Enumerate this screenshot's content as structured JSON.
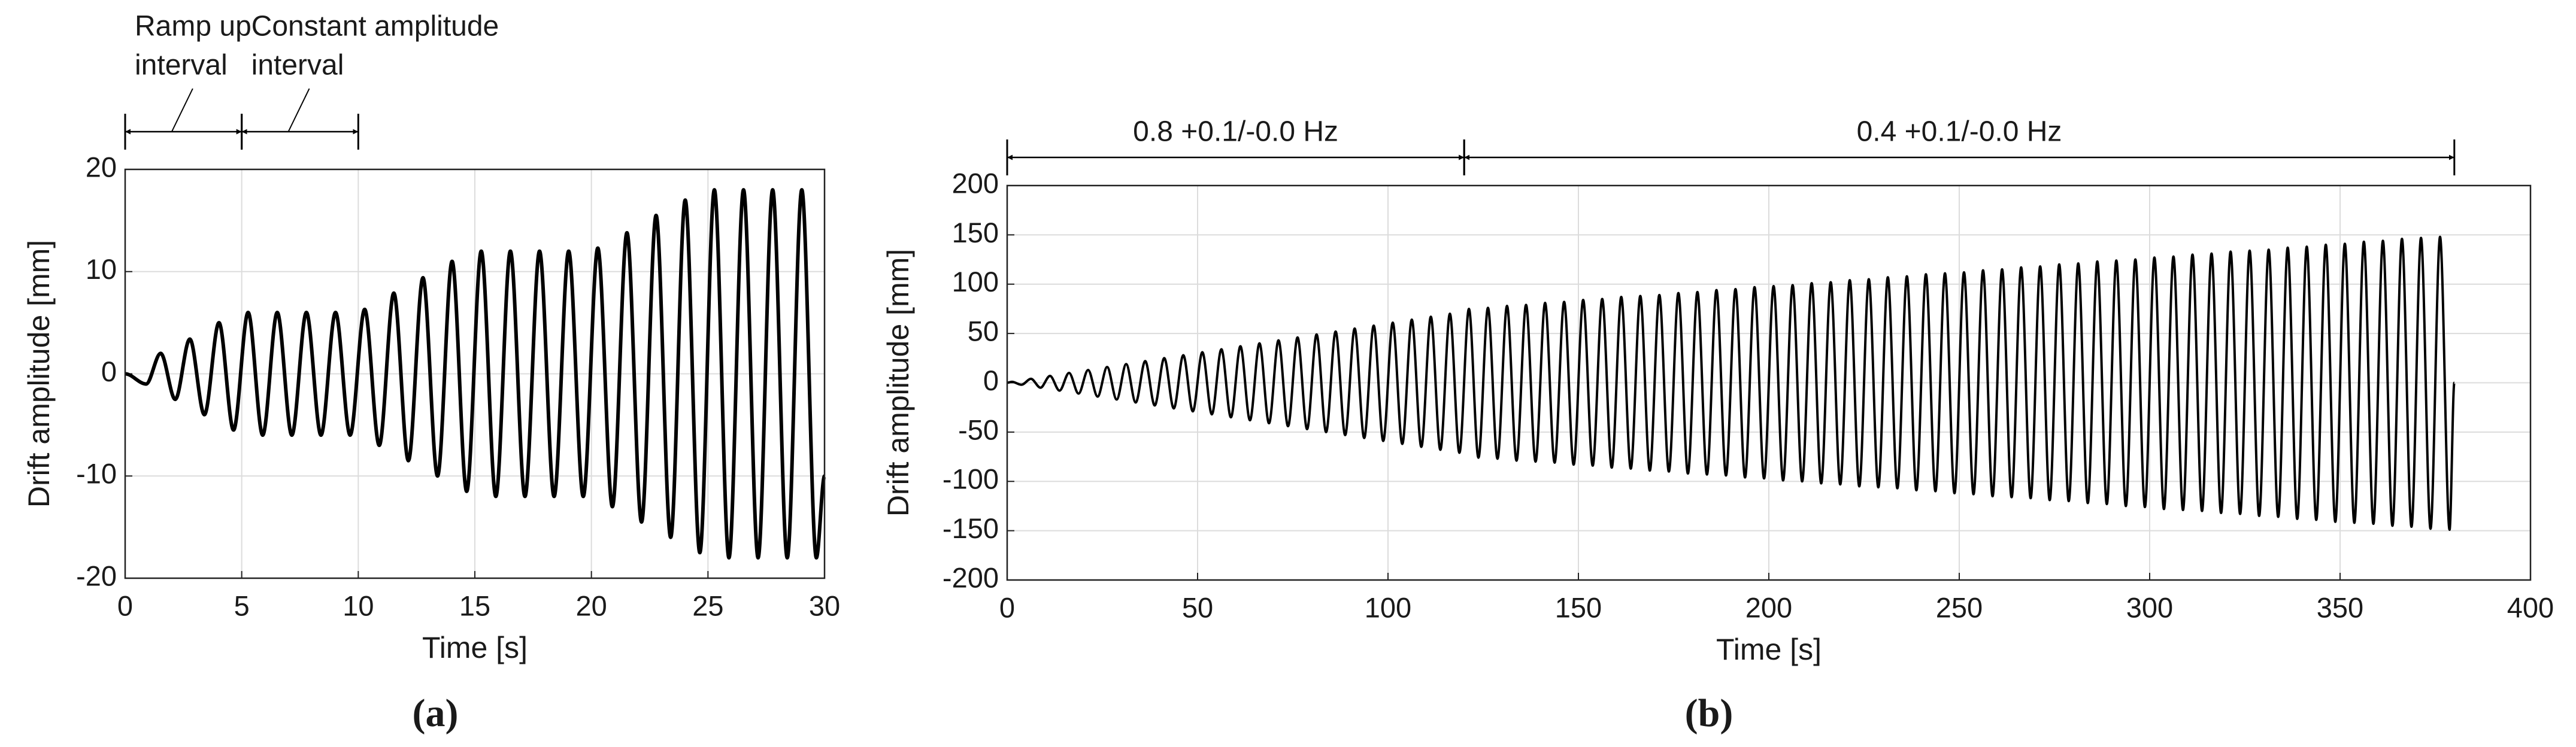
{
  "chart_data": [
    {
      "type": "line",
      "panel_label": "(a)",
      "xlabel": "Time [s]",
      "ylabel": "Drift amplitude [mm]",
      "x": [
        0,
        0.9,
        1.525,
        2.15,
        2.775,
        3.4,
        4.025,
        4.65,
        5.275,
        5.9,
        6.525,
        7.15,
        7.775,
        8.4,
        9.025,
        9.65,
        10.275,
        10.9,
        11.525,
        12.15,
        12.775,
        13.4,
        14.025,
        14.65,
        15.275,
        15.9,
        16.525,
        17.15,
        17.775,
        18.4,
        19.025,
        19.65,
        20.275,
        20.9,
        21.525,
        22.15,
        22.775,
        23.4,
        24.025,
        24.65,
        25.275,
        25.9,
        26.525,
        27.15,
        27.775,
        28.4,
        29.025,
        29.65,
        30
      ],
      "series": [
        {
          "color": "#000000",
          "values": [
            0,
            -1,
            2,
            -2.5,
            3.4,
            -4,
            5,
            -5.5,
            6,
            -6,
            6,
            -6,
            6,
            -6,
            6,
            -6,
            6.3,
            -7,
            7.9,
            -8.5,
            9.4,
            -10,
            11,
            -11.5,
            12,
            -12,
            12,
            -12,
            12,
            -12,
            12,
            -12,
            12.3,
            -13,
            13.8,
            -14.5,
            15.5,
            -16,
            17,
            -17.5,
            18,
            -18,
            18,
            -18,
            18,
            -18,
            18,
            -18,
            -10
          ]
        }
      ],
      "xlim": [
        0,
        30
      ],
      "xticks": [
        0,
        5,
        10,
        15,
        20,
        25,
        30
      ],
      "ylim": [
        -20,
        20
      ],
      "yticks": [
        -20,
        -10,
        0,
        10,
        20
      ],
      "grid": true,
      "intervals": [
        {
          "label_lines": [
            "Ramp up",
            "interval"
          ],
          "start": 0,
          "end": 5
        },
        {
          "label_lines": [
            "Constant amplitude",
            "interval"
          ],
          "start": 5,
          "end": 10
        }
      ]
    },
    {
      "type": "line",
      "panel_label": "(b)",
      "xlabel": "Time [s]",
      "ylabel": "Drift amplitude [mm]",
      "x": [
        0,
        1.25,
        3.75,
        6.25,
        8.75,
        11.25,
        13.75,
        16.25,
        18.75,
        21.25,
        23.75,
        26.25,
        28.75,
        31.25,
        33.75,
        36.25,
        38.75,
        41.25,
        43.75,
        46.25,
        48.75,
        51.25,
        53.75,
        56.25,
        58.75,
        61.25,
        63.75,
        66.25,
        68.75,
        71.25,
        73.75,
        76.25,
        78.75,
        81.25,
        83.75,
        86.25,
        88.75,
        91.25,
        93.75,
        96.25,
        98.75,
        101.25,
        103.75,
        106.25,
        108.75,
        111.25,
        113.75,
        116.25,
        118.75,
        121.25,
        123.75,
        126.25,
        128.75,
        131.25,
        133.75,
        136.25,
        138.75,
        141.25,
        143.75,
        146.25,
        148.75,
        151.25,
        153.75,
        156.25,
        158.75,
        161.25,
        163.75,
        166.25,
        168.75,
        171.25,
        173.75,
        176.25,
        178.75,
        181.25,
        183.75,
        186.25,
        188.75,
        191.25,
        193.75,
        196.25,
        198.75,
        201.25,
        203.75,
        206.25,
        208.75,
        211.25,
        213.75,
        216.25,
        218.75,
        221.25,
        223.75,
        226.25,
        228.75,
        231.25,
        233.75,
        236.25,
        238.75,
        241.25,
        243.75,
        246.25,
        248.75,
        251.25,
        253.75,
        256.25,
        258.75,
        261.25,
        263.75,
        266.25,
        268.75,
        271.25,
        273.75,
        276.25,
        278.75,
        281.25,
        283.75,
        286.25,
        288.75,
        291.25,
        293.75,
        296.25,
        298.75,
        301.25,
        303.75,
        306.25,
        308.75,
        311.25,
        313.75,
        316.25,
        318.75,
        321.25,
        323.75,
        326.25,
        328.75,
        331.25,
        333.75,
        336.25,
        338.75,
        341.25,
        343.75,
        346.25,
        348.75,
        351.25,
        353.75,
        356.25,
        358.75,
        361.25,
        363.75,
        366.25,
        368.75,
        371.25,
        373.75,
        376.25,
        378.75,
        380
      ],
      "series": [
        {
          "color": "#000000",
          "values": [
            0,
            1,
            -2,
            4,
            -5,
            7,
            -8,
            10,
            -11,
            13,
            -14,
            16,
            -17,
            19,
            -20,
            22,
            -23,
            25,
            -26,
            28,
            -29,
            31,
            -32,
            34,
            -35,
            37,
            -38,
            40,
            -41,
            43,
            -44,
            46,
            -47,
            49,
            -50,
            52,
            -53,
            55,
            -56,
            58,
            -59,
            61,
            -62,
            64,
            -65,
            67,
            -68,
            70,
            -71,
            75,
            -76,
            76,
            -77,
            78,
            -79,
            79,
            -80,
            81,
            -81,
            82,
            -83,
            84,
            -84,
            85,
            -86,
            87,
            -87,
            88,
            -89,
            89,
            -90,
            91,
            -92,
            92,
            -93,
            94,
            -94,
            95,
            -96,
            97,
            -97,
            98,
            -99,
            99,
            -100,
            101,
            -102,
            102,
            -103,
            104,
            -105,
            105,
            -106,
            107,
            -107,
            108,
            -109,
            110,
            -110,
            111,
            -112,
            112,
            -113,
            114,
            -115,
            115,
            -116,
            117,
            -117,
            118,
            -119,
            120,
            -120,
            121,
            -122,
            123,
            -123,
            124,
            -125,
            125,
            -126,
            127,
            -128,
            128,
            -129,
            130,
            -130,
            131,
            -132,
            133,
            -133,
            134,
            -135,
            135,
            -136,
            137,
            -138,
            138,
            -139,
            140,
            -141,
            141,
            -142,
            143,
            -143,
            144,
            -145,
            146,
            -146,
            147,
            -148,
            148,
            -149,
            0
          ]
        }
      ],
      "xlim": [
        0,
        400
      ],
      "xticks": [
        0,
        50,
        100,
        150,
        200,
        250,
        300,
        350,
        400
      ],
      "ylim": [
        -200,
        200
      ],
      "yticks": [
        -200,
        -150,
        -100,
        -50,
        0,
        50,
        100,
        150,
        200
      ],
      "grid": true,
      "intervals": [
        {
          "label_lines": [
            "0.8 +0.1/-0.0 Hz"
          ],
          "start": 0,
          "end": 120
        },
        {
          "label_lines": [
            "0.4 +0.1/-0.0 Hz"
          ],
          "start": 120,
          "end": 380
        }
      ]
    }
  ]
}
